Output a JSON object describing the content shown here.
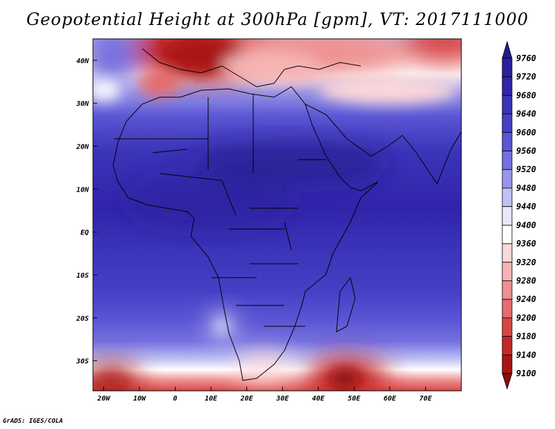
{
  "title": "Geopotential Height at 300hPa [gpm], VT: 2017111000",
  "credit": "GrADS: IGES/COLA",
  "map": {
    "lon_range": [
      -23,
      80
    ],
    "lat_range": [
      -37,
      45
    ],
    "lon_ticks": [
      {
        "value": -20,
        "label": "20W"
      },
      {
        "value": -10,
        "label": "10W"
      },
      {
        "value": 0,
        "label": "0"
      },
      {
        "value": 10,
        "label": "10E"
      },
      {
        "value": 20,
        "label": "20E"
      },
      {
        "value": 30,
        "label": "30E"
      },
      {
        "value": 40,
        "label": "40E"
      },
      {
        "value": 50,
        "label": "50E"
      },
      {
        "value": 60,
        "label": "60E"
      },
      {
        "value": 70,
        "label": "70E"
      }
    ],
    "lat_ticks": [
      {
        "value": 40,
        "label": "40N"
      },
      {
        "value": 30,
        "label": "30N"
      },
      {
        "value": 20,
        "label": "20N"
      },
      {
        "value": 10,
        "label": "10N"
      },
      {
        "value": 0,
        "label": "EQ"
      },
      {
        "value": -10,
        "label": "10S"
      },
      {
        "value": -20,
        "label": "20S"
      },
      {
        "value": -30,
        "label": "30S"
      }
    ]
  },
  "colorbar": {
    "levels": [
      "9760",
      "9720",
      "9680",
      "9640",
      "9600",
      "9560",
      "9520",
      "9480",
      "9440",
      "9400",
      "9360",
      "9320",
      "9280",
      "9240",
      "9200",
      "9180",
      "9140",
      "9100"
    ],
    "colors": [
      "#241a8a",
      "#2a229c",
      "#3024aa",
      "#3a34b8",
      "#4640c6",
      "#5a56d4",
      "#7470e0",
      "#9896ea",
      "#c0c0f4",
      "#e8e8fa",
      "#ffffff",
      "#fcd8d8",
      "#f6b4b4",
      "#ee9090",
      "#e46c6c",
      "#d84646",
      "#c62828",
      "#aa1414",
      "#8a0c0c"
    ]
  }
}
